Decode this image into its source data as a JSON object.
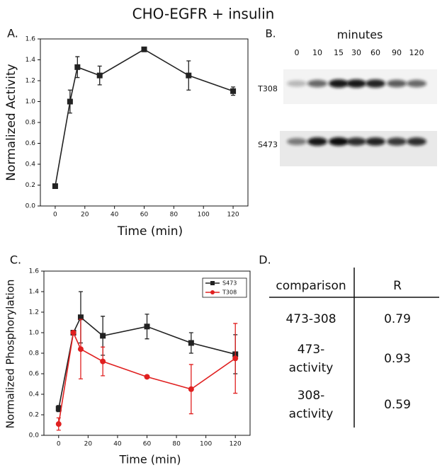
{
  "title": "CHO-EGFR + insulin",
  "chart_data": [
    {
      "type": "line",
      "label": "A.",
      "x_label": "Time (min)",
      "y_label": "Normalized Activity",
      "x": [
        0,
        10,
        15,
        30,
        60,
        90,
        120
      ],
      "series": [
        {
          "color": "#222222",
          "marker": "square",
          "values": [
            0.19,
            1.0,
            1.33,
            1.25,
            1.5,
            1.25,
            1.1
          ],
          "errors": [
            0.02,
            0.11,
            0.1,
            0.09,
            0.02,
            0.14,
            0.04
          ]
        }
      ],
      "xlim": [
        -10,
        130
      ],
      "xticks": [
        0,
        20,
        40,
        60,
        80,
        100,
        120
      ],
      "ylim": [
        0,
        1.6
      ],
      "yticks": [
        {
          "value": 0,
          "label": "0.0"
        },
        0.2,
        0.4,
        0.6,
        0.8,
        {
          "value": 1,
          "label": "1.0"
        },
        1.2,
        1.4,
        1.6
      ]
    },
    {
      "type": "line",
      "label": "C.",
      "x_label": "Time (min)",
      "y_label": "Normalized Phosphorylation",
      "x": [
        0,
        10,
        15,
        30,
        60,
        90,
        120
      ],
      "series": [
        {
          "name": "S473",
          "color": "#222222",
          "marker": "square",
          "values": [
            0.26,
            1.0,
            1.15,
            0.97,
            1.06,
            0.9,
            0.79
          ],
          "errors": [
            0.03,
            null,
            0.25,
            0.19,
            0.12,
            0.1,
            0.19
          ]
        },
        {
          "name": "T308",
          "color": "#e02020",
          "marker": "circle",
          "values": [
            0.11,
            1.0,
            0.84,
            0.72,
            0.57,
            0.45,
            0.75
          ],
          "errors": [
            0.06,
            null,
            0.29,
            0.14,
            0.01,
            0.24,
            0.34
          ]
        }
      ],
      "legend": "upper right",
      "xlim": [
        -10,
        130
      ],
      "xticks": [
        0,
        20,
        40,
        60,
        80,
        100,
        120
      ],
      "ylim": [
        0,
        1.6
      ],
      "yticks": [
        {
          "value": 0,
          "label": "0.0"
        },
        0.2,
        0.4,
        0.6,
        0.8,
        {
          "value": 1,
          "label": "1.0"
        },
        1.2,
        1.4,
        1.6
      ]
    }
  ],
  "blot": {
    "label": "B.",
    "header": "minutes",
    "lanes": [
      "0",
      "10",
      "15",
      "30",
      "60",
      "90",
      "120"
    ],
    "rows": [
      "T308",
      "S473"
    ]
  },
  "table": {
    "label": "D.",
    "header": [
      "comparison",
      "R"
    ],
    "rows": [
      [
        [
          "473-308"
        ],
        0.79
      ],
      [
        [
          "473-",
          "activity"
        ],
        0.93
      ],
      [
        [
          "308-",
          "activity"
        ],
        0.59
      ]
    ]
  }
}
